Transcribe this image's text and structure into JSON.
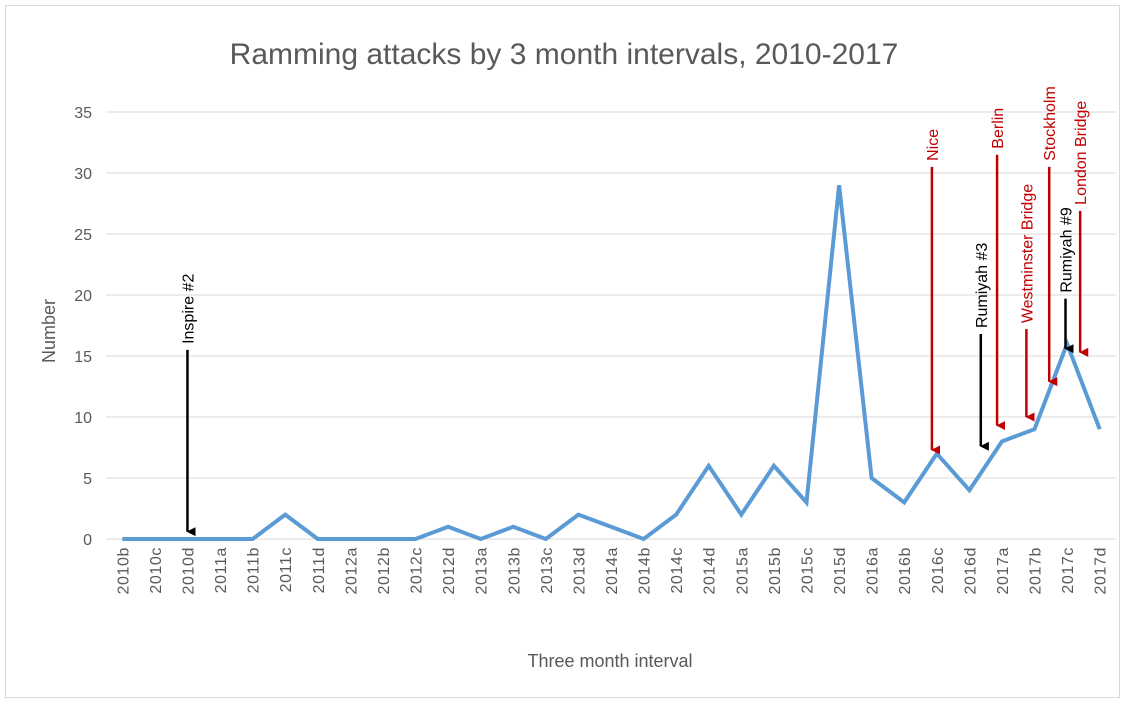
{
  "chart_data": {
    "type": "line",
    "title": "Ramming attacks by 3 month intervals, 2010-2017",
    "xlabel": "Three month interval",
    "ylabel": "Number",
    "ylim": [
      0,
      35
    ],
    "yticks": [
      "0",
      "5",
      "10",
      "15",
      "20",
      "25",
      "30",
      "35"
    ],
    "grid": true,
    "categories": [
      "2010b",
      "2010c",
      "2010d",
      "2011a",
      "2011b",
      "2011c",
      "2011d",
      "2012a",
      "2012b",
      "2012c",
      "2012d",
      "2013a",
      "2013b",
      "2013c",
      "2013d",
      "2014a",
      "2014b",
      "2014c",
      "2014d",
      "2015a",
      "2015b",
      "2015c",
      "2015d",
      "2016a",
      "2016b",
      "2016c",
      "2016d",
      "2017a",
      "2017b",
      "2017c",
      "2017d"
    ],
    "series": [
      {
        "values": [
          0,
          0,
          0,
          0,
          0,
          2,
          0,
          0,
          0,
          0,
          1,
          0,
          1,
          0,
          2,
          1,
          0,
          2,
          6,
          2,
          6,
          3,
          29,
          5,
          3,
          7,
          4,
          8,
          9,
          16,
          9
        ],
        "color": "#5b9bd5"
      }
    ],
    "annotations": [
      {
        "label": "Inspire #2",
        "at": 2.0,
        "y_start": 15.5,
        "y_end": 0.6,
        "color": "#000000"
      },
      {
        "label": "Nice",
        "at": 24.85,
        "y_start": 30.5,
        "y_end": 7.3,
        "color": "#c00000"
      },
      {
        "label": "Rumiyah #3",
        "at": 26.35,
        "y_start": 16.8,
        "y_end": 7.6,
        "color": "#000000"
      },
      {
        "label": "Berlin",
        "at": 26.85,
        "y_start": 31.5,
        "y_end": 9.3,
        "color": "#c00000"
      },
      {
        "label": "Westminster Bridge",
        "at": 27.75,
        "y_start": 17.2,
        "y_end": 10.0,
        "color": "#c00000"
      },
      {
        "label": "Stockholm",
        "at": 28.45,
        "y_start": 30.5,
        "y_end": 12.9,
        "color": "#c00000"
      },
      {
        "label": "Rumiyah #9",
        "at": 28.95,
        "y_start": 19.7,
        "y_end": 15.6,
        "color": "#000000"
      },
      {
        "label": "London Bridge",
        "at": 29.4,
        "y_start": 26.9,
        "y_end": 15.3,
        "color": "#c00000"
      }
    ]
  }
}
